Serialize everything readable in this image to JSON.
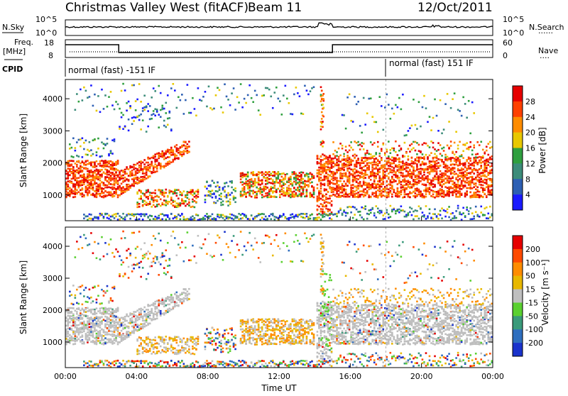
{
  "header": {
    "station": "Christmas Valley West (fitACF)",
    "beam": "Beam 11",
    "date": "12/Oct/2011"
  },
  "top_panels": {
    "nsky_label": "N.Sky",
    "nsearch_label": "N.Search",
    "nsearch_dots": "......",
    "log_ticks": [
      "10^5",
      "10^0"
    ],
    "freq_label": "Freq.",
    "freq_unit": "[MHz]",
    "freq_ticks": [
      "18",
      "8"
    ],
    "nave_label": "Nave",
    "nave_dots": "....",
    "nave_ticks": [
      "60",
      "0"
    ],
    "cpid_label": "CPID",
    "cpid_segments": [
      {
        "label": "normal (fast) -151 IF",
        "start_hour": 0
      },
      {
        "label": "normal (fast) 151 IF",
        "start_hour": 18
      }
    ]
  },
  "chart_data": [
    {
      "type": "heatmap",
      "name": "power",
      "ylabel": "Slant Range [km]",
      "yticks": [
        "1000",
        "2000",
        "3000",
        "4000"
      ],
      "ylim": [
        200,
        4600
      ],
      "xlim": [
        0,
        24
      ],
      "colorbar": {
        "label": "Power [dB]",
        "ticks": [
          "4",
          "8",
          "12",
          "16",
          "20",
          "24",
          "28"
        ],
        "colors": [
          "#1a1aff",
          "#2d5fb3",
          "#3c8c7a",
          "#2f9f3f",
          "#e8c800",
          "#ff8c00",
          "#ff4000",
          "#e60000"
        ]
      }
    },
    {
      "type": "heatmap",
      "name": "velocity",
      "ylabel": "Slant Range [km]",
      "yticks": [
        "1000",
        "2000",
        "3000",
        "4000"
      ],
      "ylim": [
        200,
        4600
      ],
      "xlim": [
        0,
        24
      ],
      "xlabel": "Time UT",
      "xticks": [
        "00:00",
        "04:00",
        "08:00",
        "12:00",
        "16:00",
        "20:00",
        "00:00"
      ],
      "colorbar": {
        "label": "Velocity [m s⁻¹]",
        "ticks": [
          "200",
          "100",
          "50",
          "15",
          "-15",
          "-50",
          "-100",
          "-200"
        ],
        "colors": [
          "#1a33cc",
          "#2f6fbf",
          "#3a9a7a",
          "#5ad030",
          "#bfbfbf",
          "#e8b800",
          "#ff8c00",
          "#ff4a00",
          "#e60000"
        ]
      }
    }
  ],
  "colors": {
    "ground_scatter": "#bebebe",
    "axis": "#000000"
  }
}
